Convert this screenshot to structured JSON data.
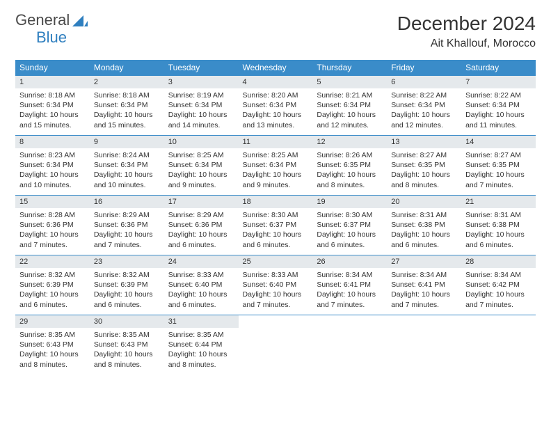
{
  "brand": {
    "name1": "General",
    "name2": "Blue"
  },
  "title": "December 2024",
  "location": "Ait Khallouf, Morocco",
  "headers": [
    "Sunday",
    "Monday",
    "Tuesday",
    "Wednesday",
    "Thursday",
    "Friday",
    "Saturday"
  ],
  "colors": {
    "header_bg": "#3a8cc9",
    "header_fg": "#ffffff",
    "daynum_bg": "#e5e9ec",
    "cell_border": "#3a8cc9",
    "brand_blue": "#2f7fbf"
  },
  "weeks": [
    [
      {
        "n": "1",
        "sr": "Sunrise: 8:18 AM",
        "ss": "Sunset: 6:34 PM",
        "d1": "Daylight: 10 hours",
        "d2": "and 15 minutes."
      },
      {
        "n": "2",
        "sr": "Sunrise: 8:18 AM",
        "ss": "Sunset: 6:34 PM",
        "d1": "Daylight: 10 hours",
        "d2": "and 15 minutes."
      },
      {
        "n": "3",
        "sr": "Sunrise: 8:19 AM",
        "ss": "Sunset: 6:34 PM",
        "d1": "Daylight: 10 hours",
        "d2": "and 14 minutes."
      },
      {
        "n": "4",
        "sr": "Sunrise: 8:20 AM",
        "ss": "Sunset: 6:34 PM",
        "d1": "Daylight: 10 hours",
        "d2": "and 13 minutes."
      },
      {
        "n": "5",
        "sr": "Sunrise: 8:21 AM",
        "ss": "Sunset: 6:34 PM",
        "d1": "Daylight: 10 hours",
        "d2": "and 12 minutes."
      },
      {
        "n": "6",
        "sr": "Sunrise: 8:22 AM",
        "ss": "Sunset: 6:34 PM",
        "d1": "Daylight: 10 hours",
        "d2": "and 12 minutes."
      },
      {
        "n": "7",
        "sr": "Sunrise: 8:22 AM",
        "ss": "Sunset: 6:34 PM",
        "d1": "Daylight: 10 hours",
        "d2": "and 11 minutes."
      }
    ],
    [
      {
        "n": "8",
        "sr": "Sunrise: 8:23 AM",
        "ss": "Sunset: 6:34 PM",
        "d1": "Daylight: 10 hours",
        "d2": "and 10 minutes."
      },
      {
        "n": "9",
        "sr": "Sunrise: 8:24 AM",
        "ss": "Sunset: 6:34 PM",
        "d1": "Daylight: 10 hours",
        "d2": "and 10 minutes."
      },
      {
        "n": "10",
        "sr": "Sunrise: 8:25 AM",
        "ss": "Sunset: 6:34 PM",
        "d1": "Daylight: 10 hours",
        "d2": "and 9 minutes."
      },
      {
        "n": "11",
        "sr": "Sunrise: 8:25 AM",
        "ss": "Sunset: 6:34 PM",
        "d1": "Daylight: 10 hours",
        "d2": "and 9 minutes."
      },
      {
        "n": "12",
        "sr": "Sunrise: 8:26 AM",
        "ss": "Sunset: 6:35 PM",
        "d1": "Daylight: 10 hours",
        "d2": "and 8 minutes."
      },
      {
        "n": "13",
        "sr": "Sunrise: 8:27 AM",
        "ss": "Sunset: 6:35 PM",
        "d1": "Daylight: 10 hours",
        "d2": "and 8 minutes."
      },
      {
        "n": "14",
        "sr": "Sunrise: 8:27 AM",
        "ss": "Sunset: 6:35 PM",
        "d1": "Daylight: 10 hours",
        "d2": "and 7 minutes."
      }
    ],
    [
      {
        "n": "15",
        "sr": "Sunrise: 8:28 AM",
        "ss": "Sunset: 6:36 PM",
        "d1": "Daylight: 10 hours",
        "d2": "and 7 minutes."
      },
      {
        "n": "16",
        "sr": "Sunrise: 8:29 AM",
        "ss": "Sunset: 6:36 PM",
        "d1": "Daylight: 10 hours",
        "d2": "and 7 minutes."
      },
      {
        "n": "17",
        "sr": "Sunrise: 8:29 AM",
        "ss": "Sunset: 6:36 PM",
        "d1": "Daylight: 10 hours",
        "d2": "and 6 minutes."
      },
      {
        "n": "18",
        "sr": "Sunrise: 8:30 AM",
        "ss": "Sunset: 6:37 PM",
        "d1": "Daylight: 10 hours",
        "d2": "and 6 minutes."
      },
      {
        "n": "19",
        "sr": "Sunrise: 8:30 AM",
        "ss": "Sunset: 6:37 PM",
        "d1": "Daylight: 10 hours",
        "d2": "and 6 minutes."
      },
      {
        "n": "20",
        "sr": "Sunrise: 8:31 AM",
        "ss": "Sunset: 6:38 PM",
        "d1": "Daylight: 10 hours",
        "d2": "and 6 minutes."
      },
      {
        "n": "21",
        "sr": "Sunrise: 8:31 AM",
        "ss": "Sunset: 6:38 PM",
        "d1": "Daylight: 10 hours",
        "d2": "and 6 minutes."
      }
    ],
    [
      {
        "n": "22",
        "sr": "Sunrise: 8:32 AM",
        "ss": "Sunset: 6:39 PM",
        "d1": "Daylight: 10 hours",
        "d2": "and 6 minutes."
      },
      {
        "n": "23",
        "sr": "Sunrise: 8:32 AM",
        "ss": "Sunset: 6:39 PM",
        "d1": "Daylight: 10 hours",
        "d2": "and 6 minutes."
      },
      {
        "n": "24",
        "sr": "Sunrise: 8:33 AM",
        "ss": "Sunset: 6:40 PM",
        "d1": "Daylight: 10 hours",
        "d2": "and 6 minutes."
      },
      {
        "n": "25",
        "sr": "Sunrise: 8:33 AM",
        "ss": "Sunset: 6:40 PM",
        "d1": "Daylight: 10 hours",
        "d2": "and 7 minutes."
      },
      {
        "n": "26",
        "sr": "Sunrise: 8:34 AM",
        "ss": "Sunset: 6:41 PM",
        "d1": "Daylight: 10 hours",
        "d2": "and 7 minutes."
      },
      {
        "n": "27",
        "sr": "Sunrise: 8:34 AM",
        "ss": "Sunset: 6:41 PM",
        "d1": "Daylight: 10 hours",
        "d2": "and 7 minutes."
      },
      {
        "n": "28",
        "sr": "Sunrise: 8:34 AM",
        "ss": "Sunset: 6:42 PM",
        "d1": "Daylight: 10 hours",
        "d2": "and 7 minutes."
      }
    ],
    [
      {
        "n": "29",
        "sr": "Sunrise: 8:35 AM",
        "ss": "Sunset: 6:43 PM",
        "d1": "Daylight: 10 hours",
        "d2": "and 8 minutes."
      },
      {
        "n": "30",
        "sr": "Sunrise: 8:35 AM",
        "ss": "Sunset: 6:43 PM",
        "d1": "Daylight: 10 hours",
        "d2": "and 8 minutes."
      },
      {
        "n": "31",
        "sr": "Sunrise: 8:35 AM",
        "ss": "Sunset: 6:44 PM",
        "d1": "Daylight: 10 hours",
        "d2": "and 8 minutes."
      },
      {
        "empty": true,
        "n": "",
        "sr": "",
        "ss": "",
        "d1": "",
        "d2": ""
      },
      {
        "empty": true,
        "n": "",
        "sr": "",
        "ss": "",
        "d1": "",
        "d2": ""
      },
      {
        "empty": true,
        "n": "",
        "sr": "",
        "ss": "",
        "d1": "",
        "d2": ""
      },
      {
        "empty": true,
        "n": "",
        "sr": "",
        "ss": "",
        "d1": "",
        "d2": ""
      }
    ]
  ]
}
